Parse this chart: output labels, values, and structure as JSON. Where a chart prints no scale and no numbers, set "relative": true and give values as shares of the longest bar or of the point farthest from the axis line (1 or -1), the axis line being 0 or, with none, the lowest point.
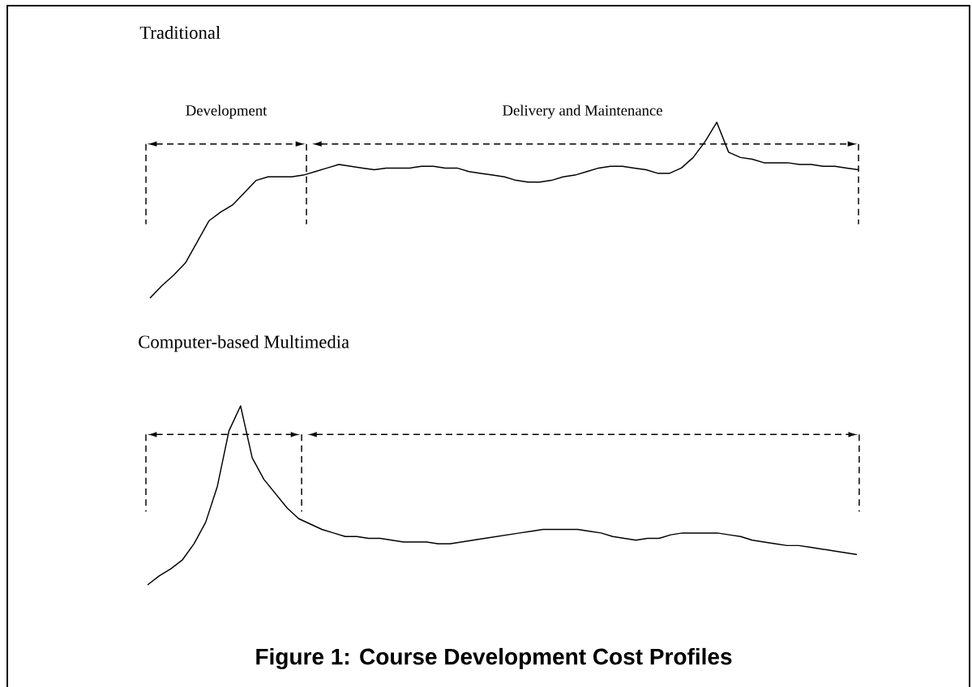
{
  "chart_data": [
    {
      "type": "line",
      "title": "Traditional",
      "relative": true,
      "color": "#000000",
      "categories": [
        null,
        null,
        null,
        null,
        null,
        null,
        null,
        null,
        null,
        null,
        null,
        null,
        null,
        null,
        null,
        null,
        null,
        null,
        null,
        null,
        null,
        null,
        null,
        null,
        null,
        null,
        null,
        null,
        null,
        null,
        null,
        null,
        null,
        null,
        null,
        null,
        null,
        null,
        null,
        null,
        null,
        null,
        null,
        null,
        null,
        null,
        null,
        null,
        null,
        null,
        null,
        null,
        null,
        null,
        null,
        null,
        null,
        null,
        null,
        null,
        null
      ],
      "values": [
        0,
        0.07,
        0.13,
        0.2,
        0.32,
        0.44,
        0.49,
        0.53,
        0.6,
        0.67,
        0.69,
        0.69,
        0.69,
        0.7,
        0.72,
        0.74,
        0.76,
        0.75,
        0.74,
        0.73,
        0.74,
        0.74,
        0.74,
        0.75,
        0.75,
        0.74,
        0.74,
        0.72,
        0.71,
        0.7,
        0.69,
        0.67,
        0.66,
        0.66,
        0.67,
        0.69,
        0.7,
        0.72,
        0.74,
        0.75,
        0.75,
        0.74,
        0.73,
        0.71,
        0.71,
        0.74,
        0.8,
        0.89,
        1,
        0.83,
        0.8,
        0.79,
        0.77,
        0.77,
        0.77,
        0.76,
        0.76,
        0.75,
        0.75,
        0.74,
        0.73
      ],
      "annotations": [
        "Development",
        "Delivery and Maintenance"
      ]
    },
    {
      "type": "line",
      "title": "Computer-based Multimedia",
      "relative": true,
      "color": "#000000",
      "categories": [
        null,
        null,
        null,
        null,
        null,
        null,
        null,
        null,
        null,
        null,
        null,
        null,
        null,
        null,
        null,
        null,
        null,
        null,
        null,
        null,
        null,
        null,
        null,
        null,
        null,
        null,
        null,
        null,
        null,
        null,
        null,
        null,
        null,
        null,
        null,
        null,
        null,
        null,
        null,
        null,
        null,
        null,
        null,
        null,
        null,
        null,
        null,
        null,
        null,
        null,
        null,
        null,
        null,
        null,
        null,
        null,
        null,
        null,
        null,
        null,
        null,
        null
      ],
      "values": [
        0,
        0.05,
        0.09,
        0.14,
        0.23,
        0.35,
        0.55,
        0.86,
        1,
        0.71,
        0.59,
        0.51,
        0.43,
        0.37,
        0.34,
        0.31,
        0.29,
        0.27,
        0.27,
        0.26,
        0.26,
        0.25,
        0.24,
        0.24,
        0.24,
        0.23,
        0.23,
        0.24,
        0.25,
        0.26,
        0.27,
        0.28,
        0.29,
        0.3,
        0.31,
        0.31,
        0.31,
        0.31,
        0.3,
        0.29,
        0.27,
        0.26,
        0.25,
        0.26,
        0.26,
        0.28,
        0.29,
        0.29,
        0.29,
        0.29,
        0.28,
        0.27,
        0.25,
        0.24,
        0.23,
        0.22,
        0.22,
        0.21,
        0.2,
        0.19,
        0.18,
        0.17
      ],
      "annotations": [
        "Figure 1:  Course Development Cost Profiles"
      ]
    }
  ]
}
